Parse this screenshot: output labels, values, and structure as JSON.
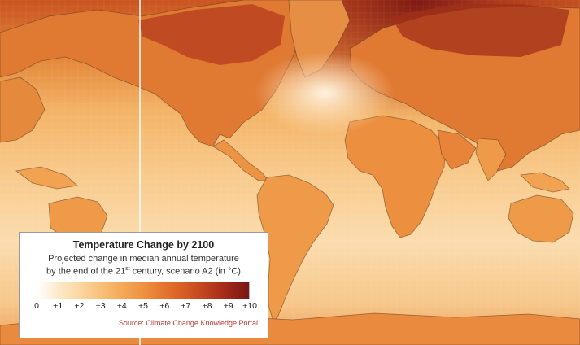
{
  "map": {
    "ocean_colors": [
      "#fde6c4",
      "#fbd6a0",
      "#f6c17a",
      "#f0a85c"
    ],
    "land_colors": [
      "#f4b565",
      "#ee9c4c",
      "#e57f37",
      "#d9652b",
      "#c94e22",
      "#b03a1c",
      "#8e2414"
    ],
    "coastline_color": "#5a3a22",
    "meridian_line_color": "#ffffff"
  },
  "legend": {
    "title": "Temperature Change by 2100",
    "subtitle_line1": "Projected change in median annual temperature",
    "subtitle_line2_before": "by the end of the 21",
    "subtitle_line2_sup": "st",
    "subtitle_line2_after": " century, scenario A2 (in °C)",
    "scale_labels": [
      "0",
      "+1",
      "+2",
      "+3",
      "+4",
      "+5",
      "+6",
      "+7",
      "+8",
      "+9",
      "+10"
    ],
    "scale_colors": [
      "#ffffff",
      "#fde9c8",
      "#fbd7a2",
      "#f8c07a",
      "#f4a958",
      "#ee913f",
      "#e4752e",
      "#d55a24",
      "#bd401d",
      "#9e2818",
      "#7a1612"
    ],
    "source": "Source: Climate Change Knowledge Portal"
  }
}
